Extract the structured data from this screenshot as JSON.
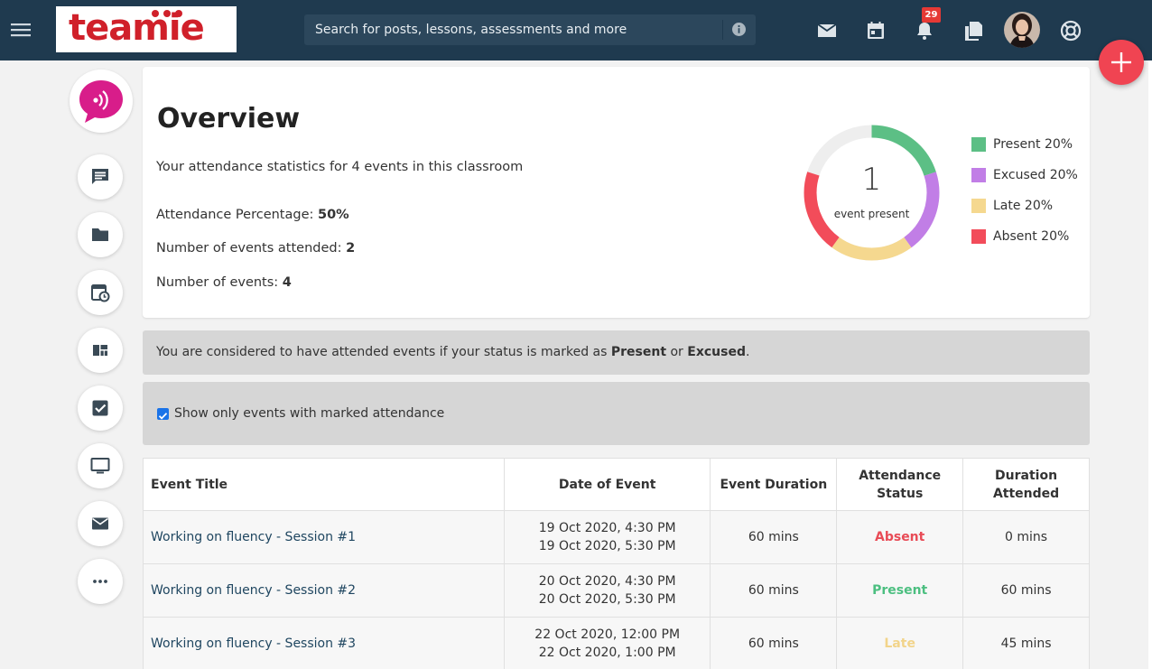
{
  "header": {
    "logo_text": "teamie",
    "search_placeholder": "Search for posts, lessons, assessments and more",
    "notification_count": "29",
    "icons": [
      "menu-icon",
      "mail-icon",
      "calendar-icon",
      "bell-icon",
      "copy-icon",
      "avatar",
      "help-icon"
    ]
  },
  "sidebar": {
    "items": [
      "chat-icon",
      "folder-icon",
      "calendar-clock-icon",
      "dashboard-icon",
      "checkbox-icon",
      "monitor-icon",
      "mail-icon",
      "more-icon"
    ]
  },
  "overview": {
    "title": "Overview",
    "subtitle": "Your attendance statistics for 4 events in this classroom",
    "attendance_label": "Attendance Percentage: ",
    "attendance_value": "50%",
    "attended_label": "Number of events attended: ",
    "attended_value": "2",
    "events_label": "Number of events: ",
    "events_value": "4",
    "donut_number": "1",
    "donut_label": "event present"
  },
  "chart_data": {
    "type": "pie",
    "categories": [
      "Present",
      "Excused",
      "Late",
      "Absent"
    ],
    "values": [
      20,
      20,
      20,
      20
    ],
    "legend": [
      "Present 20%",
      "Excused 20%",
      "Late 20%",
      "Absent 20%"
    ],
    "colors": [
      "#5cbf85",
      "#c17ee6",
      "#f5d88f",
      "#f24c5a"
    ],
    "remainder_color": "#eeeeee",
    "center_value": "1",
    "center_label": "event present",
    "legend_position": "right"
  },
  "notice": {
    "prefix": "You are considered to have attended events if your status is marked as ",
    "present": "Present",
    "or": " or ",
    "excused": "Excused",
    "suffix": "."
  },
  "filter": {
    "label": "Show only events with marked attendance",
    "checked": true
  },
  "table": {
    "headers": [
      "Event Title",
      "Date of Event",
      "Event Duration",
      "Attendance Status",
      "Duration Attended"
    ],
    "rows": [
      {
        "title": "Working on fluency - Session #1",
        "start": "19 Oct 2020, 4:30 PM",
        "end": "19 Oct 2020, 5:30 PM",
        "duration": "60 mins",
        "status": "Absent",
        "attended": "0 mins"
      },
      {
        "title": "Working on fluency - Session #2",
        "start": "20 Oct 2020, 4:30 PM",
        "end": "20 Oct 2020, 5:30 PM",
        "duration": "60 mins",
        "status": "Present",
        "attended": "60 mins"
      },
      {
        "title": "Working on fluency - Session #3",
        "start": "22 Oct 2020, 12:00 PM",
        "end": "22 Oct 2020, 1:00 PM",
        "duration": "60 mins",
        "status": "Late",
        "attended": "45 mins"
      }
    ]
  }
}
